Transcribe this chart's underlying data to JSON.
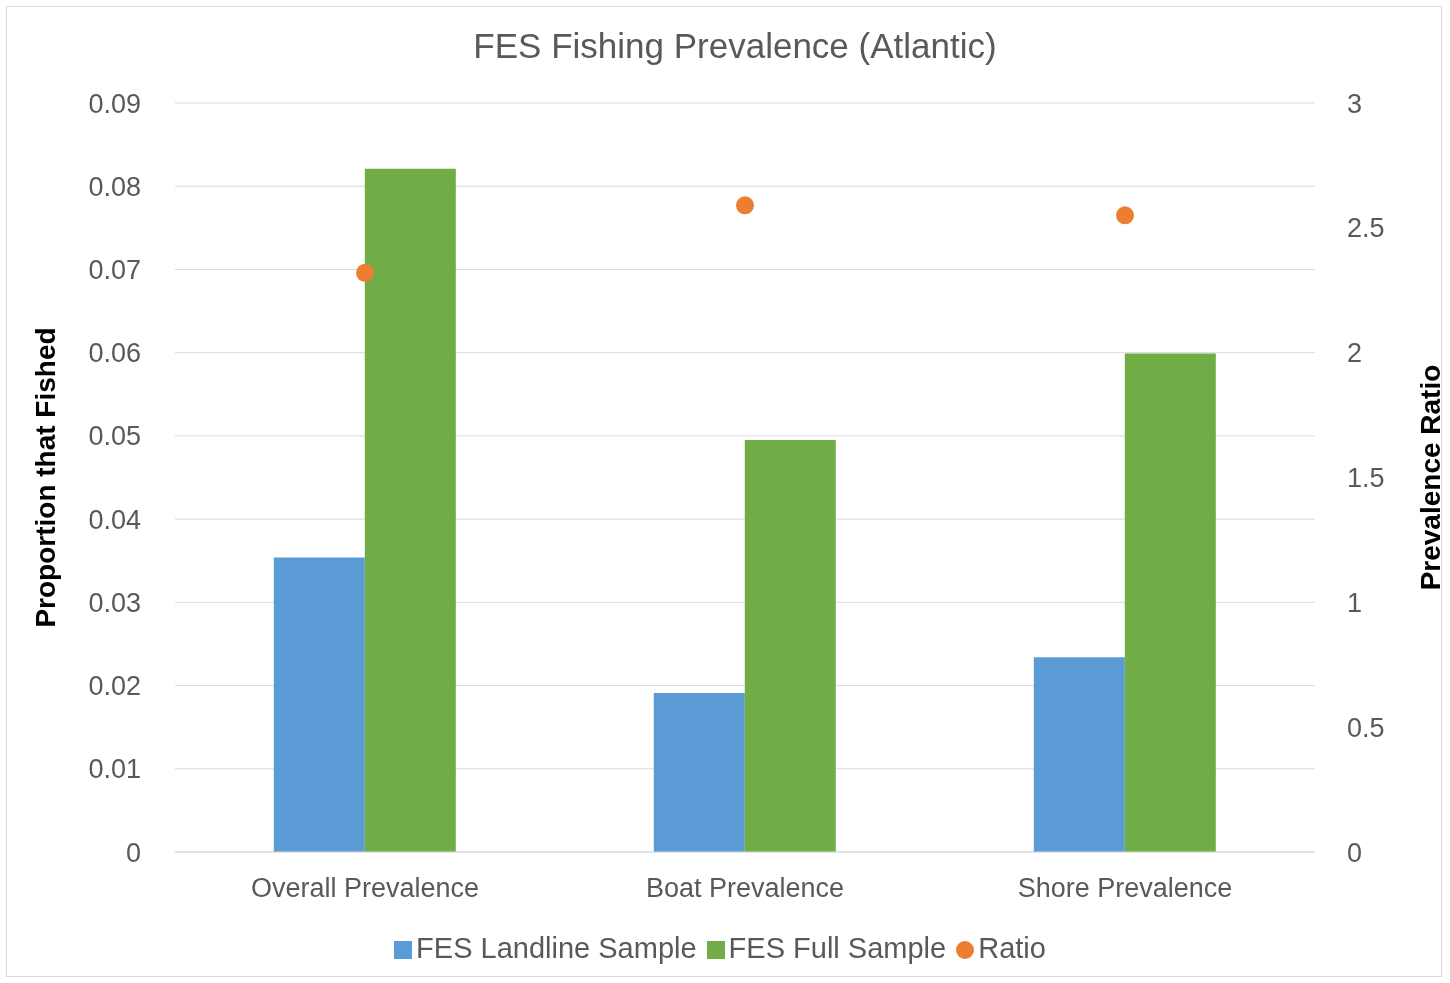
{
  "chart_data": {
    "type": "bar",
    "title": "FES Fishing Prevalence (Atlantic)",
    "ylabel": "Proportion that Fished",
    "y2label": "Prevalence Ratio",
    "categories": [
      "Overall Prevalence",
      "Boat Prevalence",
      "Shore Prevalence"
    ],
    "series": [
      {
        "name": "FES Landline Sample",
        "color": "#5b9bd5",
        "values": [
          0.0354,
          0.0191,
          0.0234
        ]
      },
      {
        "name": "FES Full Sample",
        "color": "#70ad47",
        "values": [
          0.0821,
          0.0495,
          0.0599
        ]
      },
      {
        "name": "Ratio",
        "type": "scatter",
        "axis": "y2",
        "color": "#ed7d31",
        "marker": "circle",
        "values": [
          2.32,
          2.59,
          2.55
        ]
      }
    ],
    "ylim": [
      0,
      0.09
    ],
    "yticks": [
      0,
      0.01,
      0.02,
      0.03,
      0.04,
      0.05,
      0.06,
      0.07,
      0.08,
      0.09
    ],
    "y2lim": [
      0,
      3
    ],
    "y2ticks": [
      0,
      0.5,
      1,
      1.5,
      2,
      2.5,
      3
    ],
    "grid": "y",
    "legend": "bottom"
  }
}
